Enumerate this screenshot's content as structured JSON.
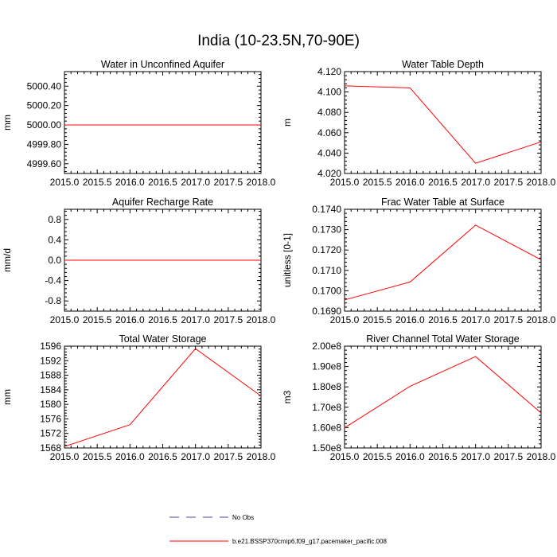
{
  "figure": {
    "title": "India (10-23.5N,70-90E)"
  },
  "legend": {
    "entries": [
      {
        "label": "No Obs",
        "color": "#4a4aa8",
        "style": "dashed"
      },
      {
        "label": "b.e21.BSSP370cmip6.f09_g17.pacemaker_pacific.008",
        "color": "#ff0000",
        "style": "solid"
      }
    ]
  },
  "chart_data": [
    {
      "type": "line",
      "title": "Water in Unconfined Aquifer",
      "ylabel": "mm",
      "xlim": [
        2015.0,
        2018.0
      ],
      "ylim": [
        4999.5,
        5000.55
      ],
      "xticks": [
        "2015.0",
        "2015.5",
        "2016.0",
        "2016.5",
        "2017.0",
        "2017.5",
        "2018.0"
      ],
      "yticks": [
        "4999.60",
        "4999.80",
        "5000.00",
        "5000.20",
        "5000.40"
      ],
      "series": [
        {
          "color": "#ff0000",
          "x": [
            2015,
            2016,
            2017,
            2018
          ],
          "y": [
            5000.0,
            5000.0,
            5000.0,
            5000.0
          ]
        }
      ]
    },
    {
      "type": "line",
      "title": "Water Table Depth",
      "ylabel": "m",
      "xlim": [
        2015.0,
        2018.0
      ],
      "ylim": [
        4.02,
        4.12
      ],
      "xticks": [
        "2015.0",
        "2015.5",
        "2016.0",
        "2016.5",
        "2017.0",
        "2017.5",
        "2018.0"
      ],
      "yticks": [
        "4.020",
        "4.040",
        "4.060",
        "4.080",
        "4.100",
        "4.120"
      ],
      "series": [
        {
          "color": "#ff0000",
          "x": [
            2015,
            2016,
            2017,
            2018
          ],
          "y": [
            4.106,
            4.104,
            4.03,
            4.051
          ]
        }
      ]
    },
    {
      "type": "line",
      "title": "Aquifer Recharge Rate",
      "ylabel": "mm/d",
      "xlim": [
        2015.0,
        2018.0
      ],
      "ylim": [
        -1.0,
        1.0
      ],
      "xticks": [
        "2015.0",
        "2015.5",
        "2016.0",
        "2016.5",
        "2017.0",
        "2017.5",
        "2018.0"
      ],
      "yticks": [
        "-0.8",
        "-0.4",
        "0.0",
        "0.4",
        "0.8"
      ],
      "series": [
        {
          "color": "#ff0000",
          "x": [
            2015,
            2016,
            2017,
            2018
          ],
          "y": [
            0.0,
            0.0,
            0.0,
            0.0
          ]
        }
      ]
    },
    {
      "type": "line",
      "title": "Frac Water Table at Surface",
      "ylabel": "unitless [0-1]",
      "xlim": [
        2015.0,
        2018.0
      ],
      "ylim": [
        0.169,
        0.174
      ],
      "xticks": [
        "2015.0",
        "2015.5",
        "2016.0",
        "2016.5",
        "2017.0",
        "2017.5",
        "2018.0"
      ],
      "yticks": [
        "0.1690",
        "0.1700",
        "0.1710",
        "0.1720",
        "0.1730",
        "0.1740"
      ],
      "series": [
        {
          "color": "#ff0000",
          "x": [
            2015,
            2016,
            2017,
            2018
          ],
          "y": [
            0.16955,
            0.17043,
            0.17322,
            0.17152
          ]
        }
      ]
    },
    {
      "type": "line",
      "title": "Total Water Storage",
      "ylabel": "mm",
      "xlim": [
        2015.0,
        2018.0
      ],
      "ylim": [
        1568,
        1596
      ],
      "xticks": [
        "2015.0",
        "2015.5",
        "2016.0",
        "2016.5",
        "2017.0",
        "2017.5",
        "2018.0"
      ],
      "yticks": [
        "1568",
        "1572",
        "1576",
        "1580",
        "1584",
        "1588",
        "1592",
        "1596"
      ],
      "series": [
        {
          "color": "#ff0000",
          "x": [
            2015,
            2016,
            2017,
            2018
          ],
          "y": [
            1568.4,
            1574.4,
            1595.3,
            1582.3
          ]
        }
      ]
    },
    {
      "type": "line",
      "title": "River Channel Total Water Storage",
      "ylabel": "m3",
      "xlim": [
        2015.0,
        2018.0
      ],
      "ylim": [
        150000000,
        200000000
      ],
      "xticks": [
        "2015.0",
        "2015.5",
        "2016.0",
        "2016.5",
        "2017.0",
        "2017.5",
        "2018.0"
      ],
      "yticks": [
        "1.50e8",
        "1.60e8",
        "1.70e8",
        "1.80e8",
        "1.90e8",
        "2.00e8"
      ],
      "series": [
        {
          "color": "#ff0000",
          "x": [
            2015,
            2016,
            2017,
            2018
          ],
          "y": [
            159900000,
            180300000,
            194900000,
            167200000
          ]
        }
      ]
    }
  ]
}
